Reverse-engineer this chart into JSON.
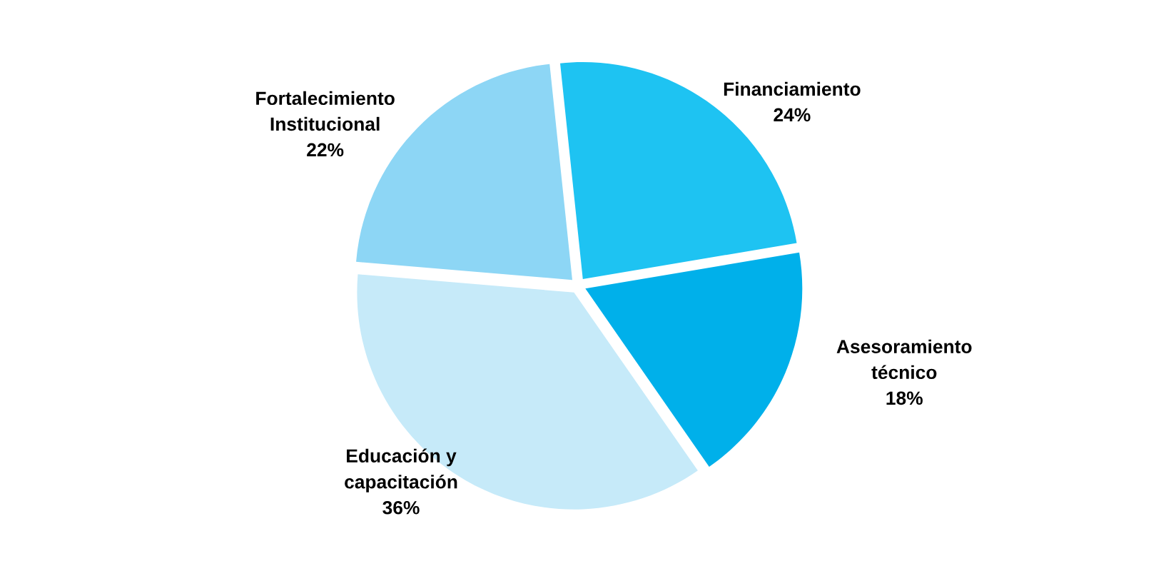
{
  "chart_data": {
    "type": "pie",
    "categories": [
      "Financiamiento",
      "Asesoramiento técnico",
      "Educación y capacitación",
      "Fortalecimiento Institucional"
    ],
    "values": [
      24,
      18,
      36,
      22
    ],
    "colors": [
      "#1ec3f2",
      "#00b0ea",
      "#c6eaf9",
      "#8dd6f5"
    ],
    "value_labels": [
      "24%",
      "18%",
      "36%",
      "22%"
    ]
  }
}
